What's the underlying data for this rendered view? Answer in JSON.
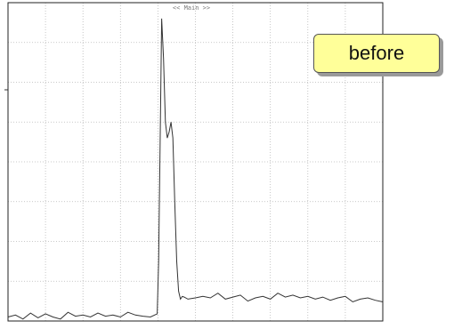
{
  "screen": {
    "header_label": "<< Main >>",
    "badge_label": "before"
  },
  "chart_data": {
    "type": "line",
    "title": "",
    "xlabel": "",
    "ylabel": "",
    "grid": true,
    "xdiv": 10,
    "ydiv": 8,
    "xlim": [
      0,
      10
    ],
    "ylim": [
      0,
      8
    ],
    "series": [
      {
        "color": "#333333",
        "x": [
          0,
          0.2,
          0.4,
          0.6,
          0.8,
          1.0,
          1.2,
          1.4,
          1.6,
          1.8,
          2.0,
          2.2,
          2.4,
          2.6,
          2.8,
          3.0,
          3.2,
          3.4,
          3.6,
          3.8,
          3.98,
          4.02,
          4.06,
          4.1,
          4.15,
          4.2,
          4.25,
          4.3,
          4.35,
          4.4,
          4.45,
          4.5,
          4.55,
          4.6,
          4.65,
          4.7,
          4.8,
          5.0,
          5.2,
          5.4,
          5.6,
          5.8,
          6.0,
          6.2,
          6.4,
          6.6,
          6.8,
          7.0,
          7.2,
          7.4,
          7.6,
          7.8,
          8.0,
          8.2,
          8.4,
          8.6,
          8.8,
          9.0,
          9.2,
          9.4,
          9.6,
          9.8,
          10.0
        ],
        "y": [
          0.1,
          0.15,
          0.05,
          0.2,
          0.08,
          0.18,
          0.1,
          0.05,
          0.22,
          0.12,
          0.15,
          0.1,
          0.2,
          0.12,
          0.15,
          0.1,
          0.22,
          0.15,
          0.12,
          0.1,
          0.18,
          1.5,
          4.5,
          7.6,
          6.6,
          5.0,
          4.6,
          4.75,
          5.0,
          4.6,
          3.0,
          1.5,
          0.75,
          0.55,
          0.62,
          0.6,
          0.55,
          0.58,
          0.62,
          0.58,
          0.7,
          0.55,
          0.6,
          0.65,
          0.5,
          0.58,
          0.62,
          0.55,
          0.7,
          0.6,
          0.65,
          0.58,
          0.62,
          0.55,
          0.6,
          0.52,
          0.58,
          0.62,
          0.48,
          0.55,
          0.58,
          0.52,
          0.48
        ]
      }
    ]
  }
}
